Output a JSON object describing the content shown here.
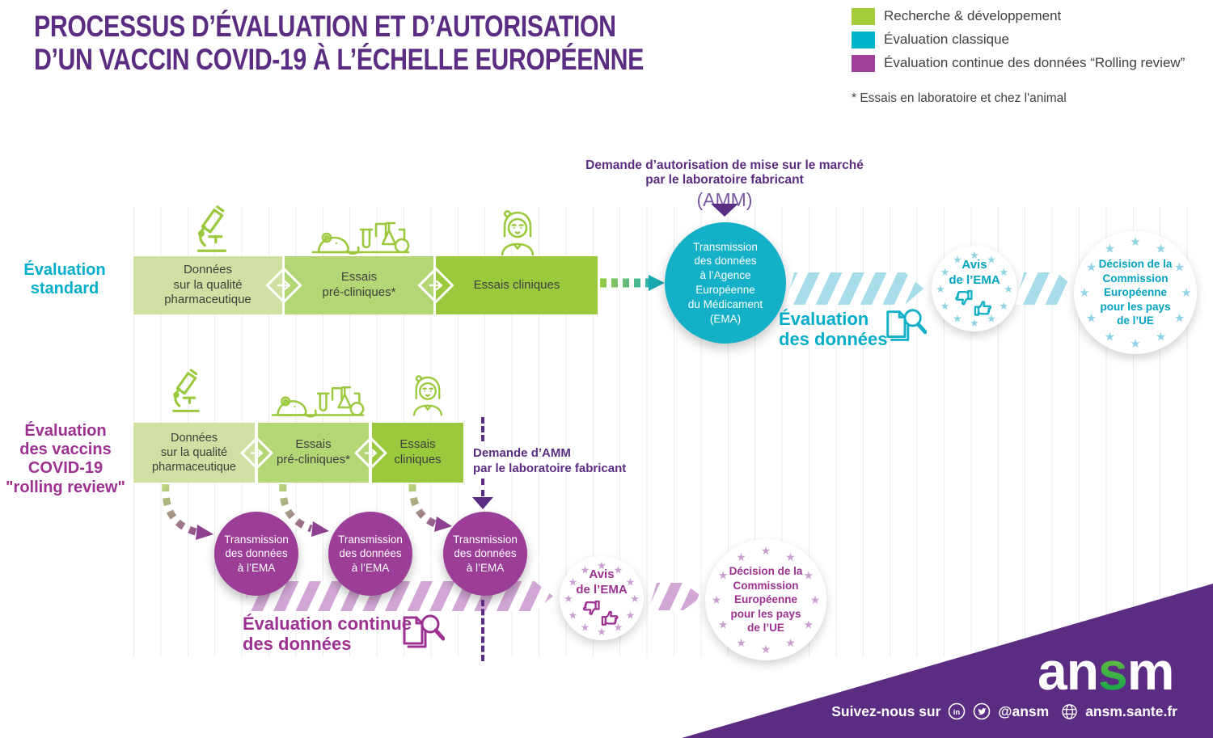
{
  "title": {
    "line1": "PROCESSUS D’ÉVALUATION ET D’AUTORISATION",
    "line2": "D’UN VACCIN COVID-19 À L’ÉCHELLE EUROPÉENNE"
  },
  "legend": {
    "items": [
      {
        "label": "Recherche & développement",
        "color": "#a4cd39"
      },
      {
        "label": "Évaluation classique",
        "color": "#00b4cb"
      },
      {
        "label": "Évaluation continue des données “Rolling review”",
        "color": "#9e3f99"
      }
    ],
    "footnote": "* Essais en laboratoire et chez l'animal"
  },
  "standard": {
    "row_label": "Évaluation\nstandard",
    "steps": [
      "Données\nsur la qualité\npharmaceutique",
      "Essais\npré-cliniques*",
      "Essais cliniques"
    ],
    "amm_request": {
      "line": "Demande d’autorisation de mise sur le marché\npar le laboratoire fabricant",
      "acronym": "(AMM)"
    },
    "transmission": "Transmission\ndes données\nà l’Agence\nEuropéenne\ndu Médicament\n(EMA)",
    "evaluation_label": "Évaluation\ndes données",
    "avis": "Avis\nde l’EMA",
    "decision": "Décision de la\nCommission\nEuropéenne\npour les pays\nde l’UE"
  },
  "rolling": {
    "row_label": "Évaluation\ndes vaccins\nCOVID-19\n\"rolling review\"",
    "steps": [
      "Données\nsur la qualité\npharmaceutique",
      "Essais\npré-cliniques*",
      "Essais\ncliniques"
    ],
    "transmissions": [
      "Transmission\ndes données\nà l’EMA",
      "Transmission\ndes données\nà l’EMA",
      "Transmission\ndes données\nà l’EMA"
    ],
    "amm_request": "Demande d’AMM\npar le laboratoire fabricant",
    "evaluation_label": "Évaluation continue\ndes données",
    "avis": "Avis\nde l’EMA",
    "decision": "Décision de la\nCommission\nEuropéenne\npour les pays\nde l’UE"
  },
  "footer": {
    "logo": {
      "an": "an",
      "s": "s",
      "m": "m"
    },
    "follow": "Suivez-nous sur",
    "linkedin": "in",
    "handle": "@ansm",
    "website": "ansm.sante.fr"
  },
  "colors": {
    "brand_purple_dark": "#5b2d82",
    "brand_magenta": "#9c3191",
    "magenta_circle": "#9c3d97",
    "cyan": "#14b0c7",
    "cyan_text": "#00aec9",
    "green_light": "#cfe0a2",
    "green_mid": "#b4d674",
    "green_dark": "#9bc93d",
    "hatch_cyan": "#a6dde9",
    "hatch_purple": "#d2a7d5",
    "stars_cyan": "#8ed4e4",
    "stars_purple": "#c99fd1"
  }
}
